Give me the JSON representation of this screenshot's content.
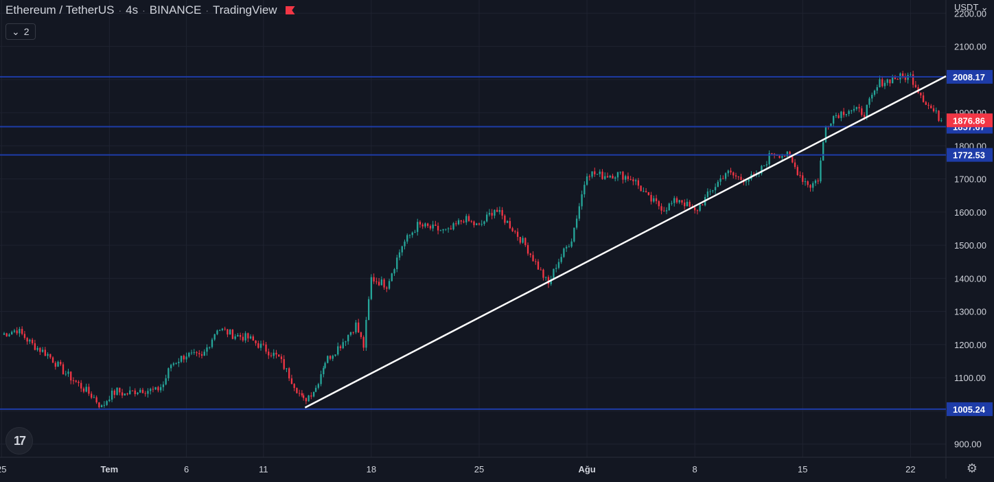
{
  "header": {
    "symbol": "Ethereum / TetherUS",
    "interval": "4s",
    "exchange": "BINANCE",
    "source": "TradingView",
    "flag_color": "#f23645"
  },
  "indicators_toggle": {
    "count": "2",
    "icon": "chevron-down-icon"
  },
  "currency": "USDT",
  "colors": {
    "background": "#131722",
    "up": "#26a69a",
    "down": "#f23645",
    "level_line": "#1e3ca8",
    "trend_line": "#ffffff",
    "axis_text": "#d1d4dc",
    "grid": "#1f2330"
  },
  "chart_data": {
    "type": "candlestick",
    "title": "",
    "xlabel": "",
    "ylabel": "",
    "ylim": [
      860,
      2240
    ],
    "y_ticks": [
      900,
      1000,
      1100,
      1200,
      1300,
      1400,
      1500,
      1600,
      1700,
      1800,
      1900,
      2000,
      2100,
      2200
    ],
    "y_tick_labels": [
      "900.00",
      "1000.00",
      "1100.00",
      "1200.00",
      "1300.00",
      "1400.00",
      "1500.00",
      "1600.00",
      "1700.00",
      "1800.00",
      "1900.00",
      "2000.00",
      "2100.00",
      "2200.00"
    ],
    "x_ticks": [
      {
        "label": "25",
        "day": -6
      },
      {
        "label": "Tem",
        "day": 1
      },
      {
        "label": "6",
        "day": 6
      },
      {
        "label": "11",
        "day": 11
      },
      {
        "label": "18",
        "day": 18
      },
      {
        "label": "25",
        "day": 25
      },
      {
        "label": "Ağu",
        "day": 32
      },
      {
        "label": "8",
        "day": 39
      },
      {
        "label": "15",
        "day": 46
      },
      {
        "label": "22",
        "day": 53
      }
    ],
    "x_range_days": [
      -6.1,
      55.3
    ],
    "closes": [
      {
        "day": -6,
        "close": 1230
      },
      {
        "day": -5,
        "close": 1245
      },
      {
        "day": -4,
        "close": 1200
      },
      {
        "day": -3,
        "close": 1170
      },
      {
        "day": -2,
        "close": 1120
      },
      {
        "day": -1,
        "close": 1080
      },
      {
        "day": 0,
        "close": 1040
      },
      {
        "day": 0.5,
        "close": 1010
      },
      {
        "day": 1,
        "close": 1045
      },
      {
        "day": 1.5,
        "close": 1060
      },
      {
        "day": 2,
        "close": 1050
      },
      {
        "day": 3,
        "close": 1065
      },
      {
        "day": 4,
        "close": 1060
      },
      {
        "day": 4.5,
        "close": 1080
      },
      {
        "day": 5,
        "close": 1140
      },
      {
        "day": 6,
        "close": 1170
      },
      {
        "day": 7,
        "close": 1160
      },
      {
        "day": 8,
        "close": 1250
      },
      {
        "day": 9,
        "close": 1230
      },
      {
        "day": 10,
        "close": 1220
      },
      {
        "day": 11,
        "close": 1190
      },
      {
        "day": 12,
        "close": 1160
      },
      {
        "day": 13,
        "close": 1080
      },
      {
        "day": 13.6,
        "close": 1030
      },
      {
        "day": 14.4,
        "close": 1070
      },
      {
        "day": 15,
        "close": 1150
      },
      {
        "day": 16,
        "close": 1200
      },
      {
        "day": 17,
        "close": 1260
      },
      {
        "day": 17.5,
        "close": 1195
      },
      {
        "day": 18,
        "close": 1400
      },
      {
        "day": 19,
        "close": 1380
      },
      {
        "day": 20,
        "close": 1500
      },
      {
        "day": 21,
        "close": 1560
      },
      {
        "day": 22,
        "close": 1550
      },
      {
        "day": 23,
        "close": 1540
      },
      {
        "day": 24,
        "close": 1580
      },
      {
        "day": 25,
        "close": 1555
      },
      {
        "day": 26,
        "close": 1610
      },
      {
        "day": 27,
        "close": 1560
      },
      {
        "day": 28,
        "close": 1500
      },
      {
        "day": 29,
        "close": 1420
      },
      {
        "day": 29.5,
        "close": 1380
      },
      {
        "day": 30,
        "close": 1440
      },
      {
        "day": 31,
        "close": 1520
      },
      {
        "day": 32,
        "close": 1720
      },
      {
        "day": 33,
        "close": 1710
      },
      {
        "day": 34,
        "close": 1715
      },
      {
        "day": 35,
        "close": 1700
      },
      {
        "day": 36,
        "close": 1640
      },
      {
        "day": 37,
        "close": 1610
      },
      {
        "day": 38,
        "close": 1640
      },
      {
        "day": 39,
        "close": 1600
      },
      {
        "day": 40,
        "close": 1660
      },
      {
        "day": 41,
        "close": 1720
      },
      {
        "day": 42,
        "close": 1700
      },
      {
        "day": 43,
        "close": 1705
      },
      {
        "day": 44,
        "close": 1780
      },
      {
        "day": 45,
        "close": 1770
      },
      {
        "day": 46,
        "close": 1700
      },
      {
        "day": 46.5,
        "close": 1680
      },
      {
        "day": 47,
        "close": 1700
      },
      {
        "day": 47.5,
        "close": 1860
      },
      {
        "day": 48,
        "close": 1890
      },
      {
        "day": 49,
        "close": 1910
      },
      {
        "day": 50,
        "close": 1900
      },
      {
        "day": 51,
        "close": 1990
      },
      {
        "day": 52,
        "close": 2005
      },
      {
        "day": 53,
        "close": 2010
      },
      {
        "day": 54,
        "close": 1930
      },
      {
        "day": 55,
        "close": 1877
      }
    ],
    "levels": [
      {
        "price": 2008.17,
        "label": "2008.17",
        "color": "#1e3ca8"
      },
      {
        "price": 1857.67,
        "label": "1857.67",
        "color": "#1e3ca8"
      },
      {
        "price": 1772.53,
        "label": "1772.53",
        "color": "#1e3ca8"
      },
      {
        "price": 1005.24,
        "label": "1005.24",
        "color": "#1e3ca8"
      }
    ],
    "last_price": {
      "price": 1876.86,
      "label": "1876.86",
      "color": "#f23645"
    },
    "trendline": {
      "start": {
        "day": 13.7,
        "price": 1010
      },
      "end": {
        "day": 55.3,
        "price": 2010
      }
    }
  }
}
